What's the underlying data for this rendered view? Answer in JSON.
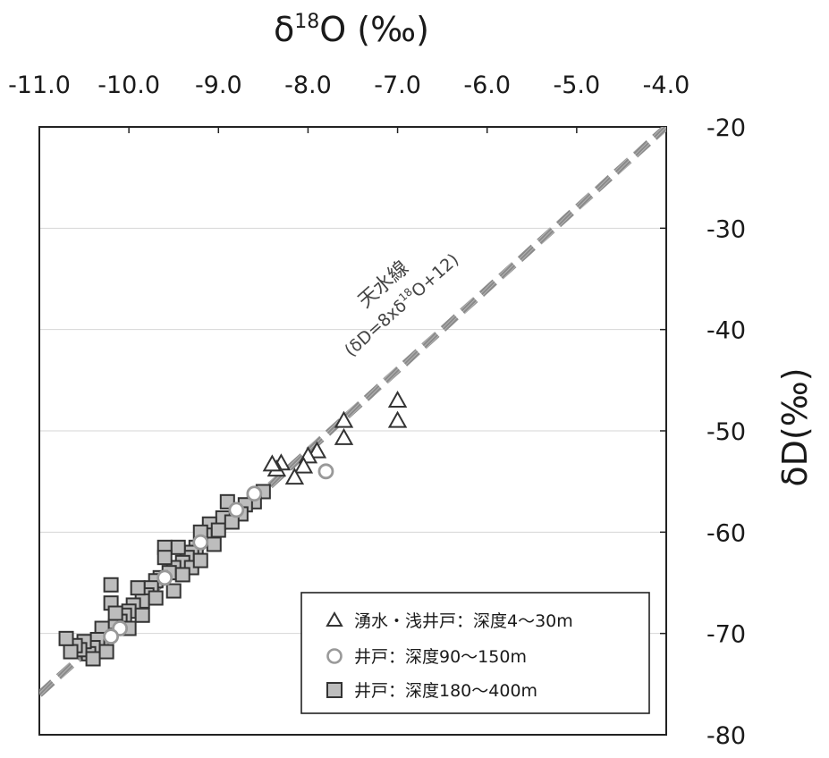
{
  "chart_data": {
    "type": "scatter",
    "title": "",
    "xlabel": "δ18O (‰)",
    "xlabel_parts": {
      "delta": "δ",
      "sup": "18",
      "rest": "O (‰)"
    },
    "ylabel": "δD(‰)",
    "xlim": [
      -11.0,
      -4.0
    ],
    "ylim": [
      -80,
      -20
    ],
    "xticks": [
      -11.0,
      -10.0,
      -9.0,
      -8.0,
      -7.0,
      -6.0,
      -5.0,
      -4.0
    ],
    "xtick_labels": [
      "-11.0",
      "-10.0",
      "-9.0",
      "-8.0",
      "-7.0",
      "-6.0",
      "-5.0",
      "-4.0"
    ],
    "yticks": [
      -20,
      -30,
      -40,
      -50,
      -60,
      -70,
      -80
    ],
    "ytick_labels": [
      "-20",
      "-30",
      "-40",
      "-50",
      "-60",
      "-70",
      "-80"
    ],
    "grid": true,
    "legend_position": "bottom-right",
    "line": {
      "name": "天水線",
      "equation": "(δD=8xδ18O+12)",
      "equation_parts": {
        "open": "(δD=8xδ",
        "sup": "18",
        "close": "O+12)"
      },
      "slope": 8,
      "intercept": 12,
      "color": "#999999"
    },
    "series": [
      {
        "name": "湧水・浅井戸：深度4～30m",
        "marker": "triangle",
        "color": "#333333",
        "points": [
          [
            -7.0,
            -47.0
          ],
          [
            -7.0,
            -49.0
          ],
          [
            -7.6,
            -49.0
          ],
          [
            -7.6,
            -50.7
          ],
          [
            -7.9,
            -52.0
          ],
          [
            -8.0,
            -52.5
          ],
          [
            -8.05,
            -53.5
          ],
          [
            -8.15,
            -54.6
          ],
          [
            -8.3,
            -53.2
          ],
          [
            -8.35,
            -53.8
          ],
          [
            -8.4,
            -53.3
          ]
        ]
      },
      {
        "name": "井戸：深度90～150m",
        "marker": "circle",
        "color": "#999999",
        "points": [
          [
            -7.8,
            -54.0
          ],
          [
            -8.6,
            -56.2
          ],
          [
            -8.8,
            -57.8
          ],
          [
            -9.2,
            -61.0
          ],
          [
            -9.6,
            -64.5
          ],
          [
            -10.1,
            -69.5
          ],
          [
            -10.2,
            -70.3
          ]
        ]
      },
      {
        "name": "井戸：深度180～400m",
        "marker": "square",
        "color": "#333333",
        "points": [
          [
            -8.5,
            -56.0
          ],
          [
            -8.6,
            -57.0
          ],
          [
            -8.7,
            -57.3
          ],
          [
            -8.75,
            -58.2
          ],
          [
            -8.9,
            -57.0
          ],
          [
            -8.95,
            -58.6
          ],
          [
            -9.1,
            -59.2
          ],
          [
            -9.15,
            -60.3
          ],
          [
            -9.0,
            -59.8
          ],
          [
            -9.2,
            -60.0
          ],
          [
            -9.25,
            -61.5
          ],
          [
            -9.3,
            -62.0
          ],
          [
            -9.35,
            -62.5
          ],
          [
            -9.4,
            -63.0
          ],
          [
            -9.45,
            -61.5
          ],
          [
            -9.5,
            -63.5
          ],
          [
            -9.55,
            -64.0
          ],
          [
            -9.6,
            -61.5
          ],
          [
            -9.6,
            -62.5
          ],
          [
            -9.65,
            -64.5
          ],
          [
            -9.7,
            -64.8
          ],
          [
            -9.75,
            -65.5
          ],
          [
            -9.8,
            -66.2
          ],
          [
            -9.85,
            -66.8
          ],
          [
            -9.9,
            -65.5
          ],
          [
            -9.95,
            -67.2
          ],
          [
            -10.0,
            -67.8
          ],
          [
            -10.05,
            -68.2
          ],
          [
            -10.1,
            -68.8
          ],
          [
            -10.15,
            -69.3
          ],
          [
            -10.2,
            -67.0
          ],
          [
            -10.2,
            -65.2
          ],
          [
            -10.25,
            -70.2
          ],
          [
            -10.3,
            -69.5
          ],
          [
            -10.3,
            -71.0
          ],
          [
            -10.35,
            -70.6
          ],
          [
            -10.4,
            -71.4
          ],
          [
            -10.45,
            -72.0
          ],
          [
            -10.5,
            -70.8
          ],
          [
            -10.55,
            -71.6
          ],
          [
            -10.6,
            -71.2
          ],
          [
            -10.65,
            -71.8
          ],
          [
            -10.7,
            -70.5
          ],
          [
            -9.7,
            -66.5
          ],
          [
            -9.5,
            -65.8
          ],
          [
            -9.3,
            -63.5
          ],
          [
            -9.05,
            -61.2
          ],
          [
            -8.85,
            -59.0
          ],
          [
            -10.0,
            -69.5
          ],
          [
            -10.15,
            -68.0
          ],
          [
            -9.85,
            -68.2
          ],
          [
            -10.4,
            -72.5
          ],
          [
            -10.25,
            -71.8
          ],
          [
            -9.4,
            -64.2
          ],
          [
            -9.2,
            -62.8
          ]
        ]
      }
    ]
  }
}
